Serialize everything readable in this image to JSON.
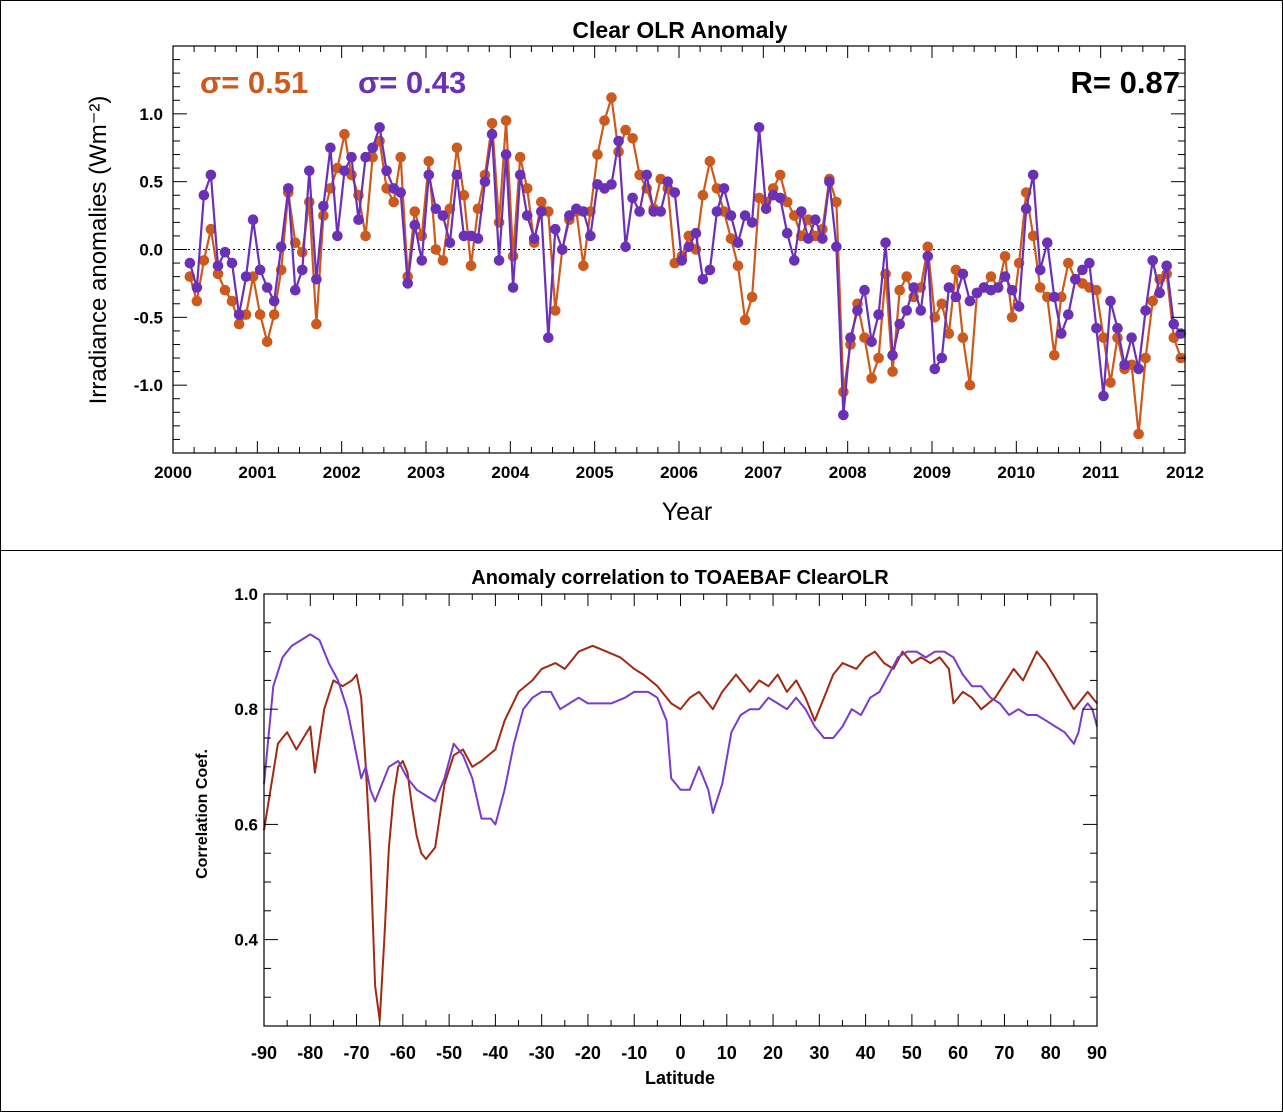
{
  "colors": {
    "orange": "#CC5A1E",
    "purple": "#6A30B5",
    "darkred": "#A02A12",
    "violet": "#7A3BC8",
    "frame": "#000000"
  },
  "chart_data": [
    {
      "type": "line",
      "title": "Clear OLR Anomaly",
      "xlabel": "Year",
      "ylabel": "Irradiance anomalies (Wm⁻²)",
      "xlim": [
        2000,
        2012
      ],
      "ylim": [
        -1.5,
        1.5
      ],
      "xticks": [
        "2000",
        "2001",
        "2002",
        "2003",
        "2004",
        "2005",
        "2006",
        "2007",
        "2008",
        "2009",
        "2010",
        "2011",
        "2012"
      ],
      "yticks": [
        "-1.0",
        "-0.5",
        "0.0",
        "0.5",
        "1.0"
      ],
      "annotations": {
        "sigma_a": "σ= 0.51",
        "sigma_b": "σ= 0.43",
        "r": "R= 0.87"
      },
      "x_start": 2000.2,
      "x_step": 0.0833333,
      "series": [
        {
          "color": "orange",
          "values": [
            -0.2,
            -0.38,
            -0.08,
            0.15,
            -0.18,
            -0.3,
            -0.38,
            -0.55,
            -0.48,
            -0.2,
            -0.48,
            -0.68,
            -0.48,
            -0.15,
            0.42,
            0.05,
            -0.02,
            0.35,
            -0.55,
            0.25,
            0.45,
            0.6,
            0.85,
            0.55,
            0.4,
            0.1,
            0.68,
            0.8,
            0.45,
            0.35,
            0.68,
            -0.2,
            0.28,
            0.1,
            0.65,
            0.0,
            -0.08,
            0.3,
            0.75,
            0.4,
            -0.12,
            0.3,
            0.55,
            0.93,
            0.2,
            0.95,
            -0.05,
            0.68,
            0.45,
            0.05,
            0.35,
            0.28,
            -0.45,
            0.0,
            0.22,
            0.28,
            -0.12,
            0.28,
            0.7,
            0.95,
            1.12,
            0.72,
            0.88,
            0.82,
            0.55,
            0.45,
            0.3,
            0.52,
            0.45,
            -0.1,
            -0.05,
            0.1,
            0.0,
            0.4,
            0.65,
            0.45,
            0.28,
            0.08,
            -0.12,
            -0.52,
            -0.35,
            0.38,
            0.35,
            0.45,
            0.55,
            0.35,
            0.25,
            0.1,
            0.22,
            0.1,
            0.15,
            0.52,
            0.35,
            -1.05,
            -0.7,
            -0.4,
            -0.65,
            -0.95,
            -0.8,
            -0.18,
            -0.9,
            -0.3,
            -0.2,
            -0.35,
            -0.28,
            0.02,
            -0.5,
            -0.4,
            -0.62,
            -0.15,
            -0.65,
            -1.0,
            -0.32,
            -0.28,
            -0.2,
            -0.28,
            -0.05,
            -0.5,
            -0.1,
            0.42,
            0.1,
            -0.28,
            -0.35,
            -0.78,
            -0.35,
            -0.1,
            -0.22,
            -0.25,
            -0.28,
            -0.3,
            -0.65,
            -0.98,
            -0.65,
            -0.88,
            -0.85,
            -1.36,
            -0.8,
            -0.38,
            -0.22,
            -0.18,
            -0.65,
            -0.8
          ]
        },
        {
          "color": "purple",
          "values": [
            -0.1,
            -0.28,
            0.4,
            0.55,
            -0.12,
            -0.02,
            -0.1,
            -0.48,
            -0.2,
            0.22,
            -0.15,
            -0.28,
            -0.38,
            0.02,
            0.45,
            -0.3,
            -0.15,
            0.58,
            -0.22,
            0.32,
            0.75,
            0.1,
            0.58,
            0.68,
            0.22,
            0.68,
            0.75,
            0.9,
            0.58,
            0.45,
            0.42,
            -0.25,
            0.18,
            -0.08,
            0.55,
            0.3,
            0.25,
            0.05,
            0.55,
            0.1,
            0.1,
            0.08,
            0.5,
            0.85,
            -0.08,
            0.7,
            -0.28,
            0.55,
            0.25,
            0.08,
            0.28,
            -0.65,
            0.15,
            0.0,
            0.25,
            0.3,
            0.28,
            0.1,
            0.48,
            0.45,
            0.48,
            0.8,
            0.02,
            0.38,
            0.28,
            0.55,
            0.28,
            0.28,
            0.5,
            0.42,
            -0.08,
            0.02,
            0.12,
            -0.22,
            -0.15,
            0.28,
            0.45,
            0.25,
            0.05,
            0.25,
            0.2,
            0.9,
            0.3,
            0.4,
            0.38,
            0.12,
            -0.08,
            0.28,
            0.08,
            0.22,
            0.08,
            0.5,
            0.02,
            -1.22,
            -0.65,
            -0.45,
            -0.3,
            -0.68,
            -0.48,
            0.05,
            -0.78,
            -0.55,
            -0.45,
            -0.28,
            -0.45,
            -0.05,
            -0.88,
            -0.8,
            -0.28,
            -0.35,
            -0.18,
            -0.38,
            -0.32,
            -0.28,
            -0.3,
            -0.28,
            -0.2,
            -0.3,
            -0.42,
            0.3,
            0.55,
            -0.15,
            0.05,
            -0.35,
            -0.62,
            -0.48,
            -0.22,
            -0.15,
            -0.1,
            -0.58,
            -1.08,
            -0.38,
            -0.58,
            -0.85,
            -0.65,
            -0.88,
            -0.45,
            -0.08,
            -0.32,
            -0.12,
            -0.55,
            -0.62
          ]
        }
      ]
    },
    {
      "type": "line",
      "title": "Anomaly correlation to TOAEBAF ClearOLR",
      "xlabel": "Latitude",
      "ylabel": "Correlation Coef.",
      "xlim": [
        -90,
        90
      ],
      "ylim": [
        0.25,
        1.0
      ],
      "xticks": [
        "-90",
        "-80",
        "-70",
        "-60",
        "-50",
        "-40",
        "-30",
        "-20",
        "-10",
        "0",
        "10",
        "20",
        "30",
        "40",
        "50",
        "60",
        "70",
        "80",
        "90"
      ],
      "yticks": [
        "0.4",
        "0.6",
        "0.8",
        "1.0"
      ],
      "series": [
        {
          "color": "darkred",
          "points": [
            [
              -90,
              0.59
            ],
            [
              -87,
              0.74
            ],
            [
              -85,
              0.76
            ],
            [
              -83,
              0.73
            ],
            [
              -80,
              0.77
            ],
            [
              -79,
              0.69
            ],
            [
              -77,
              0.8
            ],
            [
              -75,
              0.85
            ],
            [
              -73,
              0.84
            ],
            [
              -71,
              0.85
            ],
            [
              -70,
              0.86
            ],
            [
              -69,
              0.82
            ],
            [
              -68,
              0.7
            ],
            [
              -67,
              0.55
            ],
            [
              -66,
              0.32
            ],
            [
              -65,
              0.26
            ],
            [
              -64,
              0.4
            ],
            [
              -63,
              0.56
            ],
            [
              -62,
              0.65
            ],
            [
              -61,
              0.7
            ],
            [
              -60,
              0.71
            ],
            [
              -59,
              0.69
            ],
            [
              -58,
              0.63
            ],
            [
              -57,
              0.58
            ],
            [
              -56,
              0.55
            ],
            [
              -55,
              0.54
            ],
            [
              -53,
              0.56
            ],
            [
              -51,
              0.67
            ],
            [
              -49,
              0.72
            ],
            [
              -47,
              0.73
            ],
            [
              -45,
              0.7
            ],
            [
              -43,
              0.71
            ],
            [
              -40,
              0.73
            ],
            [
              -38,
              0.78
            ],
            [
              -35,
              0.83
            ],
            [
              -32,
              0.85
            ],
            [
              -30,
              0.87
            ],
            [
              -27,
              0.88
            ],
            [
              -25,
              0.87
            ],
            [
              -22,
              0.9
            ],
            [
              -19,
              0.91
            ],
            [
              -16,
              0.9
            ],
            [
              -13,
              0.89
            ],
            [
              -10,
              0.87
            ],
            [
              -8,
              0.86
            ],
            [
              -5,
              0.84
            ],
            [
              -2,
              0.81
            ],
            [
              0,
              0.8
            ],
            [
              2,
              0.82
            ],
            [
              4,
              0.83
            ],
            [
              6,
              0.81
            ],
            [
              7,
              0.8
            ],
            [
              9,
              0.83
            ],
            [
              12,
              0.86
            ],
            [
              15,
              0.83
            ],
            [
              17,
              0.85
            ],
            [
              19,
              0.84
            ],
            [
              21,
              0.86
            ],
            [
              23,
              0.83
            ],
            [
              25,
              0.85
            ],
            [
              27,
              0.82
            ],
            [
              29,
              0.78
            ],
            [
              31,
              0.82
            ],
            [
              33,
              0.86
            ],
            [
              35,
              0.88
            ],
            [
              38,
              0.87
            ],
            [
              40,
              0.89
            ],
            [
              42,
              0.9
            ],
            [
              44,
              0.88
            ],
            [
              46,
              0.87
            ],
            [
              48,
              0.9
            ],
            [
              50,
              0.88
            ],
            [
              52,
              0.89
            ],
            [
              54,
              0.88
            ],
            [
              56,
              0.89
            ],
            [
              58,
              0.87
            ],
            [
              59,
              0.81
            ],
            [
              61,
              0.83
            ],
            [
              63,
              0.82
            ],
            [
              65,
              0.8
            ],
            [
              68,
              0.82
            ],
            [
              72,
              0.87
            ],
            [
              74,
              0.85
            ],
            [
              77,
              0.9
            ],
            [
              79,
              0.88
            ],
            [
              82,
              0.84
            ],
            [
              85,
              0.8
            ],
            [
              88,
              0.83
            ],
            [
              90,
              0.81
            ]
          ]
        },
        {
          "color": "violet",
          "points": [
            [
              -90,
              0.67
            ],
            [
              -88,
              0.84
            ],
            [
              -86,
              0.89
            ],
            [
              -84,
              0.91
            ],
            [
              -82,
              0.92
            ],
            [
              -80,
              0.93
            ],
            [
              -78,
              0.92
            ],
            [
              -76,
              0.88
            ],
            [
              -74,
              0.85
            ],
            [
              -72,
              0.8
            ],
            [
              -70,
              0.72
            ],
            [
              -69,
              0.68
            ],
            [
              -68,
              0.7
            ],
            [
              -67,
              0.66
            ],
            [
              -66,
              0.64
            ],
            [
              -65,
              0.66
            ],
            [
              -63,
              0.7
            ],
            [
              -61,
              0.71
            ],
            [
              -59,
              0.68
            ],
            [
              -57,
              0.66
            ],
            [
              -55,
              0.65
            ],
            [
              -53,
              0.64
            ],
            [
              -51,
              0.68
            ],
            [
              -49,
              0.74
            ],
            [
              -47,
              0.72
            ],
            [
              -45,
              0.68
            ],
            [
              -43,
              0.61
            ],
            [
              -41,
              0.61
            ],
            [
              -40,
              0.6
            ],
            [
              -38,
              0.66
            ],
            [
              -36,
              0.74
            ],
            [
              -34,
              0.8
            ],
            [
              -32,
              0.82
            ],
            [
              -30,
              0.83
            ],
            [
              -28,
              0.83
            ],
            [
              -26,
              0.8
            ],
            [
              -24,
              0.81
            ],
            [
              -22,
              0.82
            ],
            [
              -20,
              0.81
            ],
            [
              -18,
              0.81
            ],
            [
              -15,
              0.81
            ],
            [
              -12,
              0.82
            ],
            [
              -10,
              0.83
            ],
            [
              -7,
              0.83
            ],
            [
              -5,
              0.82
            ],
            [
              -3,
              0.78
            ],
            [
              -2,
              0.68
            ],
            [
              0,
              0.66
            ],
            [
              2,
              0.66
            ],
            [
              4,
              0.7
            ],
            [
              6,
              0.66
            ],
            [
              7,
              0.62
            ],
            [
              9,
              0.67
            ],
            [
              11,
              0.76
            ],
            [
              13,
              0.79
            ],
            [
              15,
              0.8
            ],
            [
              17,
              0.8
            ],
            [
              19,
              0.82
            ],
            [
              21,
              0.81
            ],
            [
              23,
              0.8
            ],
            [
              25,
              0.82
            ],
            [
              27,
              0.8
            ],
            [
              29,
              0.77
            ],
            [
              31,
              0.75
            ],
            [
              33,
              0.75
            ],
            [
              35,
              0.77
            ],
            [
              37,
              0.8
            ],
            [
              39,
              0.79
            ],
            [
              41,
              0.82
            ],
            [
              43,
              0.83
            ],
            [
              45,
              0.86
            ],
            [
              47,
              0.89
            ],
            [
              49,
              0.9
            ],
            [
              51,
              0.9
            ],
            [
              53,
              0.89
            ],
            [
              55,
              0.9
            ],
            [
              57,
              0.9
            ],
            [
              59,
              0.89
            ],
            [
              61,
              0.86
            ],
            [
              63,
              0.84
            ],
            [
              65,
              0.84
            ],
            [
              67,
              0.82
            ],
            [
              69,
              0.81
            ],
            [
              71,
              0.79
            ],
            [
              73,
              0.8
            ],
            [
              75,
              0.79
            ],
            [
              77,
              0.79
            ],
            [
              79,
              0.78
            ],
            [
              81,
              0.77
            ],
            [
              83,
              0.76
            ],
            [
              85,
              0.74
            ],
            [
              86,
              0.76
            ],
            [
              87,
              0.8
            ],
            [
              88,
              0.81
            ],
            [
              89,
              0.8
            ],
            [
              90,
              0.77
            ]
          ]
        }
      ]
    }
  ]
}
